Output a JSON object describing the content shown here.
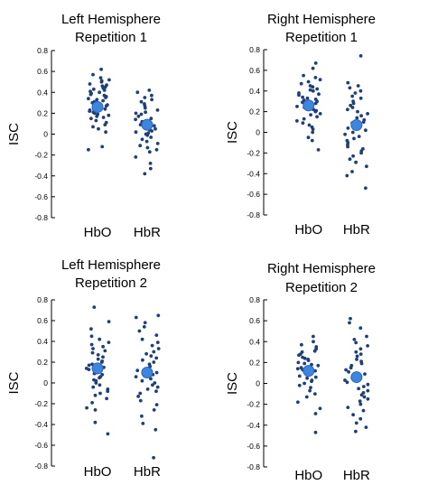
{
  "chart_data": [
    {
      "type": "scatter",
      "title": [
        "Left Hemisphere",
        "Repetition 1"
      ],
      "ylabel": "ISC",
      "categories": [
        "HbO",
        "HbR"
      ],
      "ylim": [
        -0.8,
        0.8
      ],
      "yticks": [
        0.8,
        0.6,
        0.4,
        0.2,
        0,
        -0.2,
        -0.4,
        -0.6,
        -0.8
      ],
      "grid": false,
      "point_color": "#1f3f7a",
      "mean_color": "#3d86e0",
      "series": [
        {
          "category": "HbO",
          "mean": 0.26,
          "values": [
            0.62,
            0.57,
            0.54,
            0.52,
            0.51,
            0.5,
            0.48,
            0.47,
            0.46,
            0.45,
            0.44,
            0.43,
            0.42,
            0.41,
            0.4,
            0.39,
            0.38,
            0.37,
            0.36,
            0.35,
            0.34,
            0.33,
            0.32,
            0.31,
            0.3,
            0.29,
            0.28,
            0.27,
            0.26,
            0.25,
            0.24,
            0.23,
            0.22,
            0.21,
            0.2,
            0.19,
            0.18,
            0.17,
            0.16,
            0.15,
            0.13,
            0.11,
            0.09,
            0.07,
            0.05,
            0.02,
            -0.12,
            -0.15
          ]
        },
        {
          "category": "HbR",
          "mean": 0.09,
          "values": [
            0.42,
            0.4,
            0.37,
            0.35,
            0.33,
            0.31,
            0.29,
            0.27,
            0.25,
            0.23,
            0.21,
            0.2,
            0.19,
            0.17,
            0.15,
            0.14,
            0.12,
            0.11,
            0.1,
            0.09,
            0.08,
            0.07,
            0.06,
            0.05,
            0.04,
            0.03,
            0.02,
            0.01,
            0.0,
            -0.01,
            -0.03,
            -0.05,
            -0.07,
            -0.09,
            -0.11,
            -0.13,
            -0.15,
            -0.17,
            -0.22,
            -0.28,
            -0.33,
            -0.38
          ]
        }
      ]
    },
    {
      "type": "scatter",
      "title": [
        "Right Hemisphere",
        "Repetition 1"
      ],
      "ylabel": "ISC",
      "categories": [
        "HbO",
        "HbR"
      ],
      "ylim": [
        -0.8,
        0.8
      ],
      "yticks": [
        0.8,
        0.6,
        0.4,
        0.2,
        0,
        -0.2,
        -0.4,
        -0.6,
        -0.8
      ],
      "grid": false,
      "point_color": "#1f3f7a",
      "mean_color": "#3d86e0",
      "series": [
        {
          "category": "HbO",
          "mean": 0.26,
          "values": [
            0.67,
            0.62,
            0.55,
            0.53,
            0.51,
            0.49,
            0.47,
            0.45,
            0.44,
            0.42,
            0.41,
            0.4,
            0.38,
            0.37,
            0.36,
            0.34,
            0.33,
            0.32,
            0.31,
            0.3,
            0.29,
            0.28,
            0.27,
            0.26,
            0.25,
            0.24,
            0.22,
            0.21,
            0.2,
            0.18,
            0.17,
            0.15,
            0.13,
            0.11,
            0.09,
            0.07,
            0.05,
            0.03,
            0.0,
            -0.05,
            -0.08,
            -0.17
          ]
        },
        {
          "category": "HbR",
          "mean": 0.07,
          "values": [
            0.74,
            0.48,
            0.45,
            0.43,
            0.4,
            0.38,
            0.35,
            0.33,
            0.3,
            0.28,
            0.26,
            0.24,
            0.22,
            0.2,
            0.18,
            0.16,
            0.14,
            0.12,
            0.1,
            0.09,
            0.08,
            0.06,
            0.04,
            0.02,
            0.0,
            -0.02,
            -0.04,
            -0.06,
            -0.08,
            -0.1,
            -0.12,
            -0.14,
            -0.16,
            -0.18,
            -0.2,
            -0.23,
            -0.26,
            -0.29,
            -0.33,
            -0.38,
            -0.42,
            -0.54
          ]
        }
      ]
    },
    {
      "type": "scatter",
      "title": [
        "Left Hemisphere",
        "Repetition 2"
      ],
      "ylabel": "ISC",
      "categories": [
        "HbO",
        "HbR"
      ],
      "ylim": [
        -0.8,
        0.8
      ],
      "yticks": [
        0.8,
        0.6,
        0.4,
        0.2,
        0,
        -0.2,
        -0.4,
        -0.6,
        -0.8
      ],
      "grid": false,
      "point_color": "#1f3f7a",
      "mean_color": "#3d86e0",
      "series": [
        {
          "category": "HbO",
          "mean": 0.14,
          "values": [
            0.73,
            0.59,
            0.52,
            0.45,
            0.42,
            0.39,
            0.37,
            0.35,
            0.33,
            0.31,
            0.29,
            0.27,
            0.25,
            0.23,
            0.21,
            0.2,
            0.18,
            0.17,
            0.15,
            0.14,
            0.13,
            0.12,
            0.1,
            0.09,
            0.08,
            0.06,
            0.05,
            0.03,
            0.02,
            0.0,
            -0.02,
            -0.04,
            -0.06,
            -0.08,
            -0.1,
            -0.12,
            -0.15,
            -0.19,
            -0.24,
            -0.26,
            -0.38,
            -0.49
          ]
        },
        {
          "category": "HbR",
          "mean": 0.1,
          "values": [
            0.65,
            0.63,
            0.58,
            0.54,
            0.5,
            0.46,
            0.42,
            0.39,
            0.36,
            0.33,
            0.3,
            0.28,
            0.26,
            0.24,
            0.22,
            0.2,
            0.18,
            0.16,
            0.14,
            0.12,
            0.1,
            0.08,
            0.06,
            0.04,
            0.02,
            0.0,
            -0.02,
            -0.04,
            -0.06,
            -0.08,
            -0.1,
            -0.13,
            -0.17,
            -0.21,
            -0.26,
            -0.32,
            -0.39,
            -0.45,
            -0.72
          ]
        }
      ]
    },
    {
      "type": "scatter",
      "title": [
        "Right Hemisphere",
        "Repetition 2"
      ],
      "ylabel": "ISC",
      "categories": [
        "HbO",
        "HbR"
      ],
      "ylim": [
        -0.8,
        0.8
      ],
      "yticks": [
        0.8,
        0.6,
        0.4,
        0.2,
        0,
        -0.2,
        -0.4,
        -0.6,
        -0.8
      ],
      "grid": false,
      "point_color": "#1f3f7a",
      "mean_color": "#3d86e0",
      "series": [
        {
          "category": "HbO",
          "mean": 0.12,
          "values": [
            0.45,
            0.4,
            0.37,
            0.35,
            0.33,
            0.31,
            0.3,
            0.28,
            0.27,
            0.25,
            0.24,
            0.23,
            0.22,
            0.2,
            0.19,
            0.18,
            0.17,
            0.15,
            0.14,
            0.13,
            0.12,
            0.11,
            0.1,
            0.09,
            0.07,
            0.06,
            0.05,
            0.03,
            0.02,
            0.0,
            -0.02,
            -0.04,
            -0.07,
            -0.1,
            -0.13,
            -0.18,
            -0.24,
            -0.29,
            -0.47
          ]
        },
        {
          "category": "HbR",
          "mean": 0.06,
          "values": [
            0.62,
            0.58,
            0.53,
            0.45,
            0.42,
            0.39,
            0.36,
            0.33,
            0.3,
            0.28,
            0.26,
            0.23,
            0.21,
            0.19,
            0.17,
            0.15,
            0.13,
            0.11,
            0.09,
            0.07,
            0.05,
            0.03,
            0.01,
            -0.01,
            -0.03,
            -0.05,
            -0.07,
            -0.09,
            -0.11,
            -0.13,
            -0.15,
            -0.17,
            -0.2,
            -0.23,
            -0.26,
            -0.3,
            -0.34,
            -0.38,
            -0.42,
            -0.46
          ]
        }
      ]
    }
  ]
}
